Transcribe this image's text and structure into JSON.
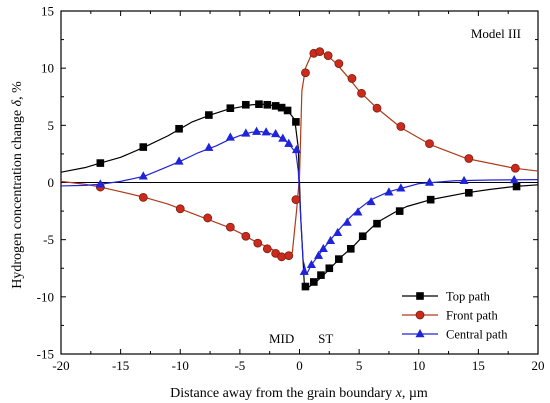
{
  "chart_data": {
    "type": "line",
    "title": "",
    "annotation": "Model III",
    "xlabel_main": "Distance away from the grain boundary ",
    "xlabel_var": "x",
    "xlabel_unit": ", µm",
    "ylabel_main": "Hydrogen concentration change ",
    "ylabel_var": "δ",
    "ylabel_unit": ", %",
    "xlim": [
      -20,
      20
    ],
    "ylim": [
      -15,
      15
    ],
    "x_ticks": [
      -20,
      -15,
      -10,
      -5,
      0,
      5,
      10,
      15,
      20
    ],
    "y_ticks": [
      -15,
      -10,
      -5,
      0,
      5,
      10,
      15
    ],
    "x_tick_labels": [
      "-20",
      "-15",
      "-10",
      "-5",
      "0",
      "5",
      "10",
      "15",
      "20"
    ],
    "y_tick_labels": [
      "-15",
      "-10",
      "-5",
      "0",
      "5",
      "10",
      "15"
    ],
    "grid": false,
    "legend_position": "bottom-right",
    "region_labels": [
      {
        "text": "MID",
        "x": -1.5
      },
      {
        "text": "ST",
        "x": 2.2
      }
    ],
    "series": [
      {
        "name": "Top path",
        "color": "#000000",
        "marker": "square",
        "line": [
          [
            -20,
            0.9
          ],
          [
            -18,
            1.3
          ],
          [
            -16.7,
            1.7
          ],
          [
            -15,
            2.2
          ],
          [
            -13,
            3.1
          ],
          [
            -11,
            4.1
          ],
          [
            -10,
            4.7
          ],
          [
            -9,
            5.3
          ],
          [
            -7.5,
            5.9
          ],
          [
            -6,
            6.4
          ],
          [
            -5,
            6.6
          ],
          [
            -4,
            6.8
          ],
          [
            -3,
            6.85
          ],
          [
            -2,
            6.7
          ],
          [
            -1.5,
            6.55
          ],
          [
            -1,
            6.3
          ],
          [
            -0.4,
            5.5
          ],
          [
            -0.1,
            3.0
          ],
          [
            0.1,
            -3.0
          ],
          [
            0.4,
            -8.8
          ],
          [
            0.7,
            -9.2
          ],
          [
            1.5,
            -8.6
          ],
          [
            2.5,
            -7.6
          ],
          [
            3.5,
            -6.5
          ],
          [
            4.5,
            -5.6
          ],
          [
            5.5,
            -4.5
          ],
          [
            6.5,
            -3.5
          ],
          [
            8,
            -2.6
          ],
          [
            9,
            -2.1
          ],
          [
            11,
            -1.5
          ],
          [
            14,
            -0.9
          ],
          [
            16,
            -0.6
          ],
          [
            18,
            -0.35
          ],
          [
            20,
            -0.2
          ]
        ],
        "points": [
          [
            -16.7,
            1.7
          ],
          [
            -13.1,
            3.1
          ],
          [
            -10.1,
            4.7
          ],
          [
            -7.6,
            5.9
          ],
          [
            -5.8,
            6.5
          ],
          [
            -4.5,
            6.8
          ],
          [
            -3.4,
            6.85
          ],
          [
            -2.7,
            6.8
          ],
          [
            -2.0,
            6.7
          ],
          [
            -1.5,
            6.55
          ],
          [
            -1.0,
            6.3
          ],
          [
            -0.3,
            5.3
          ],
          [
            0.5,
            -9.1
          ],
          [
            1.2,
            -8.7
          ],
          [
            1.8,
            -8.1
          ],
          [
            2.5,
            -7.5
          ],
          [
            3.3,
            -6.7
          ],
          [
            4.3,
            -5.8
          ],
          [
            5.3,
            -4.7
          ],
          [
            6.5,
            -3.6
          ],
          [
            8.4,
            -2.5
          ],
          [
            11,
            -1.5
          ],
          [
            14.2,
            -0.9
          ],
          [
            18.2,
            -0.35
          ]
        ]
      },
      {
        "name": "Front path",
        "color": "#b03a1a",
        "fill": "#cc2a1c",
        "marker": "circle",
        "line": [
          [
            -20,
            0.1
          ],
          [
            -18,
            -0.15
          ],
          [
            -16.7,
            -0.4
          ],
          [
            -15,
            -0.8
          ],
          [
            -13,
            -1.3
          ],
          [
            -11,
            -1.9
          ],
          [
            -10,
            -2.3
          ],
          [
            -8,
            -3.1
          ],
          [
            -6,
            -3.9
          ],
          [
            -5,
            -4.4
          ],
          [
            -4,
            -5.0
          ],
          [
            -3,
            -5.5
          ],
          [
            -2,
            -6.0
          ],
          [
            -1.5,
            -6.4
          ],
          [
            -1,
            -6.5
          ],
          [
            -0.6,
            -6.1
          ],
          [
            -0.25,
            -2.5
          ],
          [
            0,
            0.5
          ],
          [
            0.2,
            8.0
          ],
          [
            0.5,
            10.0
          ],
          [
            1,
            11.2
          ],
          [
            1.6,
            11.45
          ],
          [
            2.2,
            11.2
          ],
          [
            3,
            10.5
          ],
          [
            4,
            9.3
          ],
          [
            5,
            8.0
          ],
          [
            6.5,
            6.5
          ],
          [
            8.5,
            4.8
          ],
          [
            11,
            3.3
          ],
          [
            14,
            2.1
          ],
          [
            18,
            1.25
          ],
          [
            20,
            1.0
          ]
        ],
        "points": [
          [
            -16.7,
            -0.4
          ],
          [
            -13.1,
            -1.3
          ],
          [
            -10,
            -2.3
          ],
          [
            -7.7,
            -3.1
          ],
          [
            -5.8,
            -3.9
          ],
          [
            -4.5,
            -4.7
          ],
          [
            -3.5,
            -5.3
          ],
          [
            -2.7,
            -5.8
          ],
          [
            -2.0,
            -6.2
          ],
          [
            -1.5,
            -6.5
          ],
          [
            -0.9,
            -6.4
          ],
          [
            -0.3,
            -1.5
          ],
          [
            0.5,
            9.6
          ],
          [
            1.2,
            11.3
          ],
          [
            1.7,
            11.45
          ],
          [
            2.4,
            11.1
          ],
          [
            3.3,
            10.4
          ],
          [
            4.4,
            9.1
          ],
          [
            5.2,
            7.8
          ],
          [
            6.5,
            6.5
          ],
          [
            8.5,
            4.9
          ],
          [
            10.9,
            3.4
          ],
          [
            14.2,
            2.1
          ],
          [
            18.1,
            1.25
          ]
        ]
      },
      {
        "name": "Central path",
        "color": "#1f24d8",
        "marker": "triangle",
        "line": [
          [
            -20,
            -0.3
          ],
          [
            -18,
            -0.25
          ],
          [
            -16.7,
            -0.15
          ],
          [
            -15,
            0.1
          ],
          [
            -13,
            0.55
          ],
          [
            -11.5,
            1.2
          ],
          [
            -10,
            1.85
          ],
          [
            -8.5,
            2.6
          ],
          [
            -7,
            3.2
          ],
          [
            -6,
            3.7
          ],
          [
            -5,
            4.1
          ],
          [
            -4,
            4.4
          ],
          [
            -3.2,
            4.45
          ],
          [
            -2.5,
            4.3
          ],
          [
            -1.5,
            3.9
          ],
          [
            -1,
            3.5
          ],
          [
            -0.3,
            2.6
          ],
          [
            -0.1,
            1.0
          ],
          [
            0.1,
            -3.0
          ],
          [
            0.3,
            -6.8
          ],
          [
            0.6,
            -8.0
          ],
          [
            1,
            -7.2
          ],
          [
            1.5,
            -6.5
          ],
          [
            2,
            -5.8
          ],
          [
            3,
            -4.5
          ],
          [
            4,
            -3.3
          ],
          [
            5,
            -2.3
          ],
          [
            6,
            -1.5
          ],
          [
            7.5,
            -0.8
          ],
          [
            10,
            -0.1
          ],
          [
            13,
            0.15
          ],
          [
            16,
            0.22
          ],
          [
            20,
            0.25
          ]
        ],
        "points": [
          [
            -16.7,
            -0.15
          ],
          [
            -13.1,
            0.55
          ],
          [
            -10.1,
            1.85
          ],
          [
            -7.6,
            3.05
          ],
          [
            -5.8,
            3.95
          ],
          [
            -4.5,
            4.3
          ],
          [
            -3.6,
            4.45
          ],
          [
            -2.8,
            4.4
          ],
          [
            -2.0,
            4.25
          ],
          [
            -1.4,
            3.85
          ],
          [
            -0.9,
            3.4
          ],
          [
            -0.25,
            2.85
          ],
          [
            0.4,
            -7.8
          ],
          [
            1.0,
            -7.2
          ],
          [
            1.6,
            -6.4
          ],
          [
            2.0,
            -5.8
          ],
          [
            2.6,
            -5.1
          ],
          [
            3.2,
            -4.4
          ],
          [
            4.0,
            -3.5
          ],
          [
            4.9,
            -2.6
          ],
          [
            6.0,
            -1.7
          ],
          [
            7.5,
            -0.85
          ],
          [
            8.5,
            -0.5
          ],
          [
            10.9,
            0.0
          ],
          [
            13.8,
            0.15
          ],
          [
            18.0,
            0.22
          ]
        ]
      }
    ]
  }
}
